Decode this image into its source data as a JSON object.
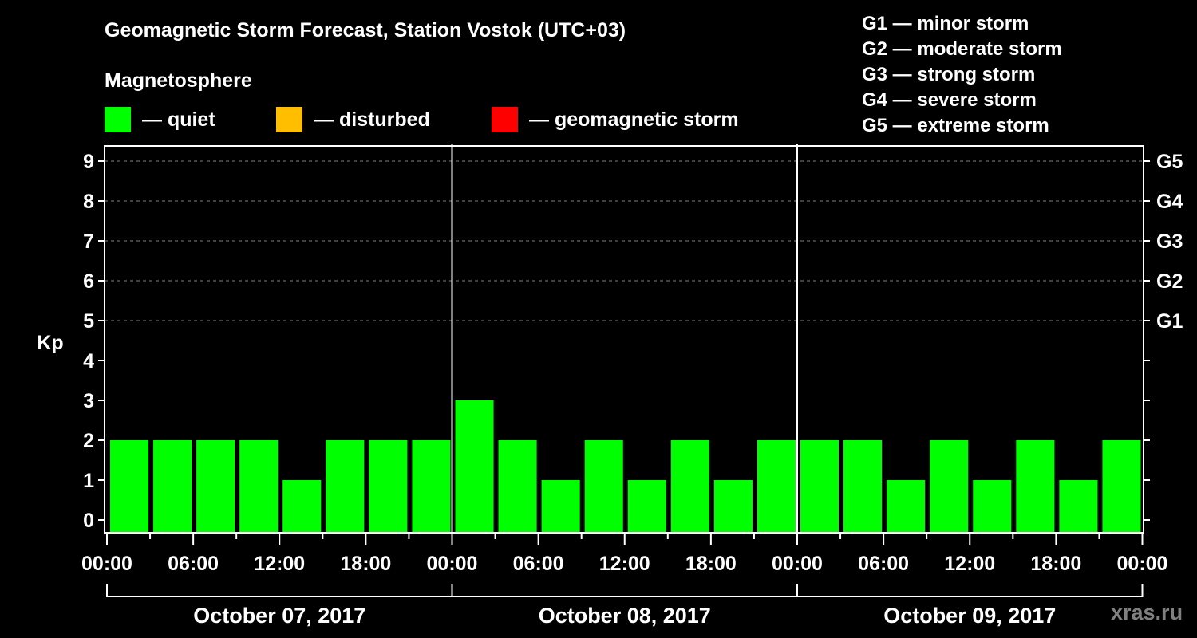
{
  "header": {
    "title": "Geomagnetic Storm Forecast, Station Vostok (UTC+03)",
    "subtitle": "Magnetosphere"
  },
  "legend": [
    {
      "label": "— quiet",
      "color": "#00ff00"
    },
    {
      "label": "— disturbed",
      "color": "#ffbf00"
    },
    {
      "label": "— geomagnetic storm",
      "color": "#ff0000"
    }
  ],
  "g_scale_legend": [
    "G1 — minor storm",
    "G2 — moderate storm",
    "G3 — strong storm",
    "G4 — severe storm",
    "G5 — extreme storm"
  ],
  "watermark": "xras.ru",
  "chart_data": {
    "type": "bar",
    "title": "Geomagnetic Storm Forecast, Station Vostok (UTC+03)",
    "xlabel": "",
    "ylabel": "Kp",
    "ylim": [
      0,
      9
    ],
    "yticks": [
      0,
      1,
      2,
      3,
      4,
      5,
      6,
      7,
      8,
      9
    ],
    "right_axis_labels": [
      {
        "kp": 5,
        "label": "G1"
      },
      {
        "kp": 6,
        "label": "G2"
      },
      {
        "kp": 7,
        "label": "G3"
      },
      {
        "kp": 8,
        "label": "G4"
      },
      {
        "kp": 9,
        "label": "G5"
      }
    ],
    "grid": "dashed horizontal at Kp 5-9",
    "xtick_labels": [
      "00:00",
      "06:00",
      "12:00",
      "18:00",
      "00:00",
      "06:00",
      "12:00",
      "18:00",
      "00:00",
      "06:00",
      "12:00",
      "18:00",
      "00:00"
    ],
    "day_labels": [
      "October 07, 2017",
      "October 08, 2017",
      "October 09, 2017"
    ],
    "categories": [
      "Oct 07 00-03",
      "Oct 07 03-06",
      "Oct 07 06-09",
      "Oct 07 09-12",
      "Oct 07 12-15",
      "Oct 07 15-18",
      "Oct 07 18-21",
      "Oct 07 21-24",
      "Oct 08 00-03",
      "Oct 08 03-06",
      "Oct 08 06-09",
      "Oct 08 09-12",
      "Oct 08 12-15",
      "Oct 08 15-18",
      "Oct 08 18-21",
      "Oct 08 21-24",
      "Oct 09 00-03",
      "Oct 09 03-06",
      "Oct 09 06-09",
      "Oct 09 09-12",
      "Oct 09 12-15",
      "Oct 09 15-18",
      "Oct 09 18-21",
      "Oct 09 21-24"
    ],
    "values": [
      2,
      2,
      2,
      2,
      1,
      2,
      2,
      2,
      3,
      2,
      1,
      2,
      1,
      2,
      1,
      2,
      2,
      2,
      1,
      2,
      1,
      2,
      1,
      2
    ],
    "bar_colors": {
      "quiet": "#00ff00",
      "disturbed": "#ffbf00",
      "storm": "#ff0000"
    },
    "legend_position": "top"
  }
}
